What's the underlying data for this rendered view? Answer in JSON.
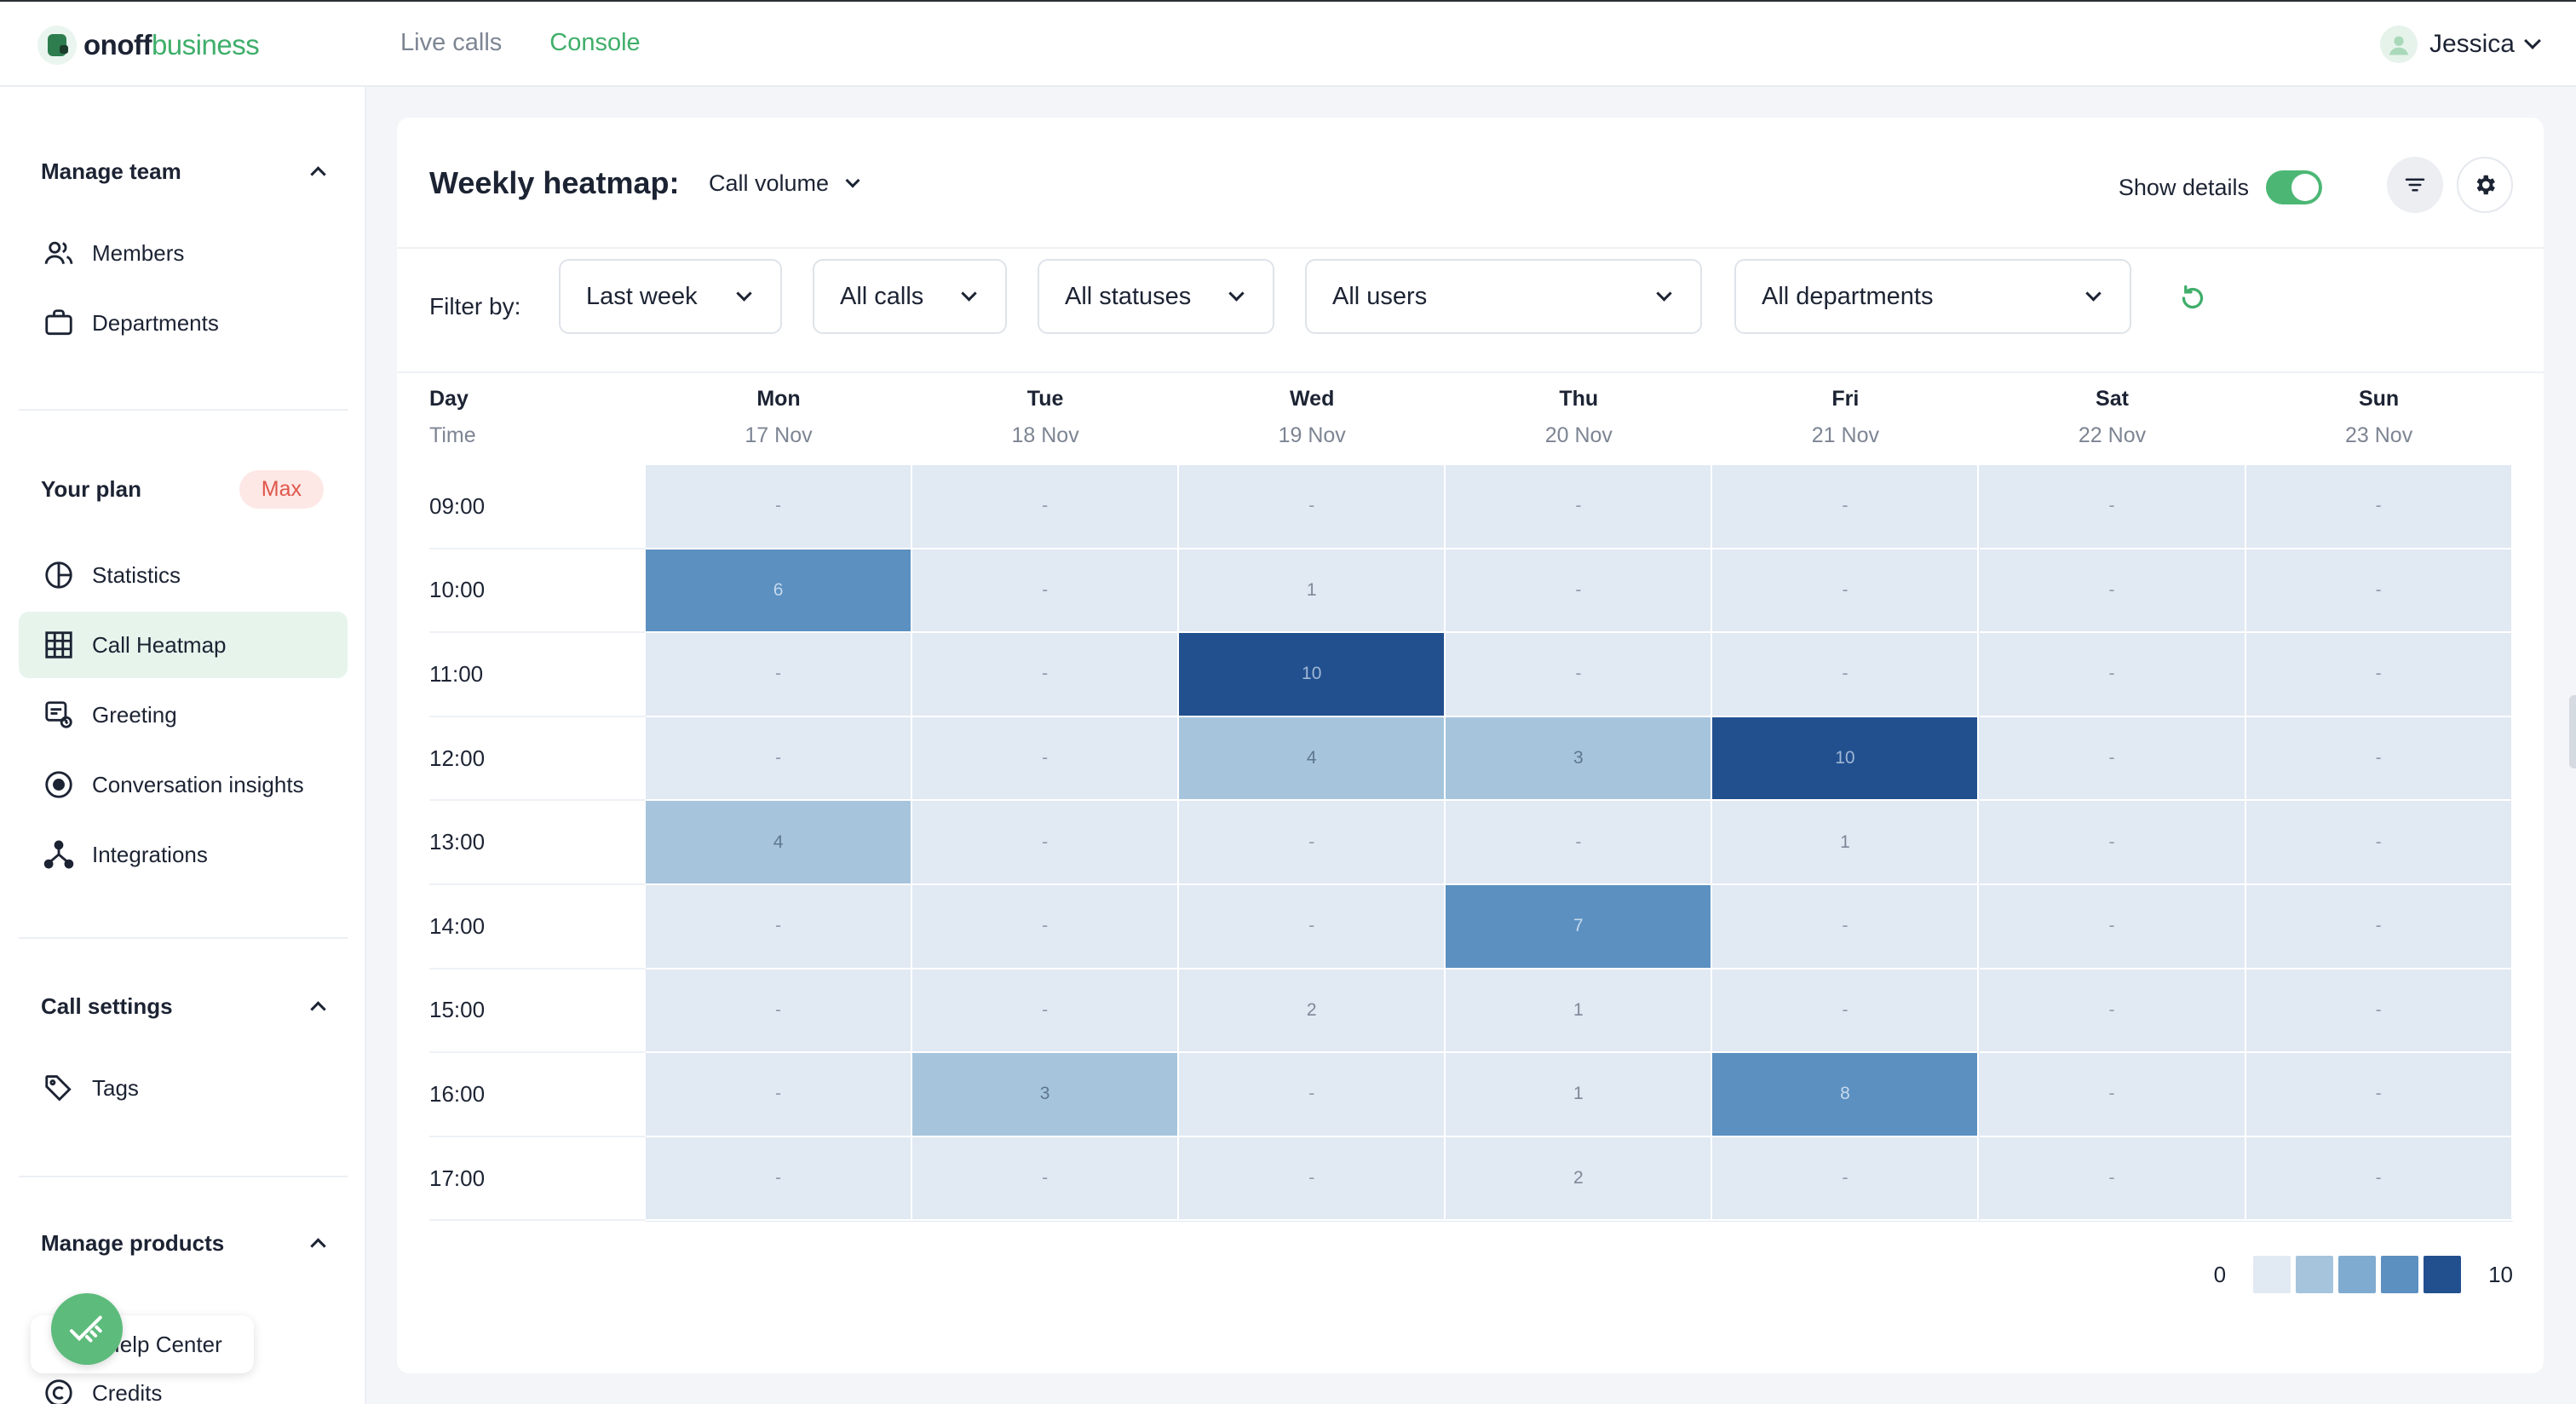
{
  "brand": {
    "name_bold": "onoff",
    "name_light": "business"
  },
  "topnav": {
    "live_calls": "Live calls",
    "console": "Console"
  },
  "user": {
    "name": "Jessica"
  },
  "sidebar": {
    "manage_team": "Manage team",
    "members": "Members",
    "departments": "Departments",
    "your_plan": "Your plan",
    "plan_badge": "Max",
    "statistics": "Statistics",
    "call_heatmap": "Call Heatmap",
    "greeting": "Greeting",
    "conversation_insights": "Conversation insights",
    "integrations": "Integrations",
    "call_settings": "Call settings",
    "tags": "Tags",
    "manage_products": "Manage products",
    "help_center": "Help Center",
    "credits": "Credits"
  },
  "header": {
    "title": "Weekly heatmap:",
    "metric": "Call volume",
    "show_details": "Show details",
    "show_details_on": true
  },
  "filters": {
    "label": "Filter by:",
    "period": "Last week",
    "calls": "All calls",
    "statuses": "All statuses",
    "users": "All users",
    "departments": "All departments"
  },
  "grid": {
    "day_label": "Day",
    "time_label": "Time",
    "days": [
      {
        "day": "Mon",
        "date": "17 Nov"
      },
      {
        "day": "Tue",
        "date": "18 Nov"
      },
      {
        "day": "Wed",
        "date": "19 Nov"
      },
      {
        "day": "Thu",
        "date": "20 Nov"
      },
      {
        "day": "Fri",
        "date": "21 Nov"
      },
      {
        "day": "Sat",
        "date": "22 Nov"
      },
      {
        "day": "Sun",
        "date": "23 Nov"
      }
    ],
    "times": [
      "09:00",
      "10:00",
      "11:00",
      "12:00",
      "13:00",
      "14:00",
      "15:00",
      "16:00",
      "17:00"
    ],
    "values": [
      [
        "-",
        "-",
        "-",
        "-",
        "-",
        "-",
        "-"
      ],
      [
        "6",
        "-",
        "1",
        "-",
        "-",
        "-",
        "-"
      ],
      [
        "-",
        "-",
        "10",
        "-",
        "-",
        "-",
        "-"
      ],
      [
        "-",
        "-",
        "4",
        "3",
        "10",
        "-",
        "-"
      ],
      [
        "4",
        "-",
        "-",
        "-",
        "1",
        "-",
        "-"
      ],
      [
        "-",
        "-",
        "-",
        "7",
        "-",
        "-",
        "-"
      ],
      [
        "-",
        "-",
        "2",
        "1",
        "-",
        "-",
        "-"
      ],
      [
        "-",
        "3",
        "-",
        "1",
        "8",
        "-",
        "-"
      ],
      [
        "-",
        "-",
        "-",
        "2",
        "-",
        "-",
        "-"
      ]
    ]
  },
  "legend": {
    "min": "0",
    "max": "10",
    "colors": [
      "#e1e9f3",
      "#a6c5dd",
      "#7fabd1",
      "#5b90c1",
      "#22508f"
    ]
  },
  "colors": {
    "accent": "#3fae6a",
    "heat_low": "#e1e9f3",
    "heat_high": "#22508f"
  }
}
